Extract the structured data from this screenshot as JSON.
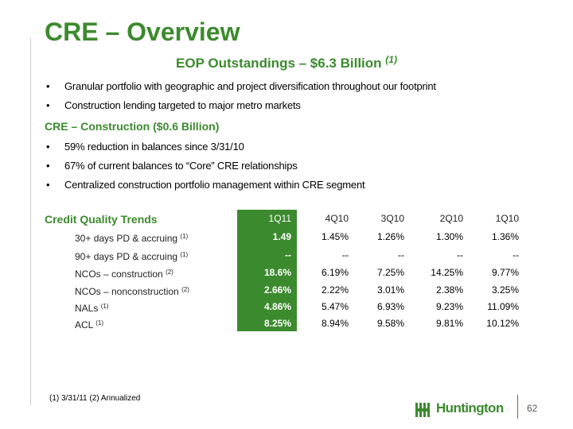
{
  "title": "CRE – Overview",
  "subtitle": {
    "text": "EOP Outstandings – $6.3 Billion",
    "note": "(1)"
  },
  "bullets_top": [
    "Granular portfolio with geographic and project diversification throughout our footprint",
    "Construction lending targeted to major metro markets"
  ],
  "section_heading": "CRE – Construction ($0.6 Billion)",
  "bullets_construction": [
    "59% reduction in balances since 3/31/10",
    "67% of current balances to “Core” CRE relationships",
    "Centralized construction portfolio management within CRE segment"
  ],
  "bullet_char": "•",
  "credit_quality": {
    "heading": "Credit Quality Trends",
    "columns": [
      "1Q11",
      "4Q10",
      "3Q10",
      "2Q10",
      "1Q10"
    ],
    "rows": [
      {
        "label": "30+ days PD & accruing",
        "note": "(1)",
        "values": [
          "1.49",
          "1.45%",
          "1.26%",
          "1.30%",
          "1.36%"
        ]
      },
      {
        "label": "90+ days PD & accruing",
        "note": "(1)",
        "values": [
          "--",
          "--",
          "--",
          "--",
          "--"
        ]
      },
      {
        "label": "NCOs – construction",
        "note": "(2)",
        "values": [
          "18.6%",
          "6.19%",
          "7.25%",
          "14.25%",
          "9.77%"
        ]
      },
      {
        "label": "NCOs – nonconstruction",
        "note": "(2)",
        "values": [
          "2.66%",
          "2.22%",
          "3.01%",
          "2.38%",
          "3.25%"
        ]
      },
      {
        "label": "NALs",
        "note": "(1)",
        "values": [
          "4.86%",
          "5.47%",
          "6.93%",
          "9.23%",
          "11.09%"
        ]
      },
      {
        "label": "ACL",
        "note": "(1)",
        "values": [
          "8.25%",
          "8.94%",
          "9.58%",
          "9.81%",
          "10.12%"
        ]
      }
    ]
  },
  "footnote": "(1) 3/31/11  (2) Annualized",
  "logo_text": "Huntington",
  "page_number": "62",
  "colors": {
    "brand_green": "#3c8a2e"
  }
}
